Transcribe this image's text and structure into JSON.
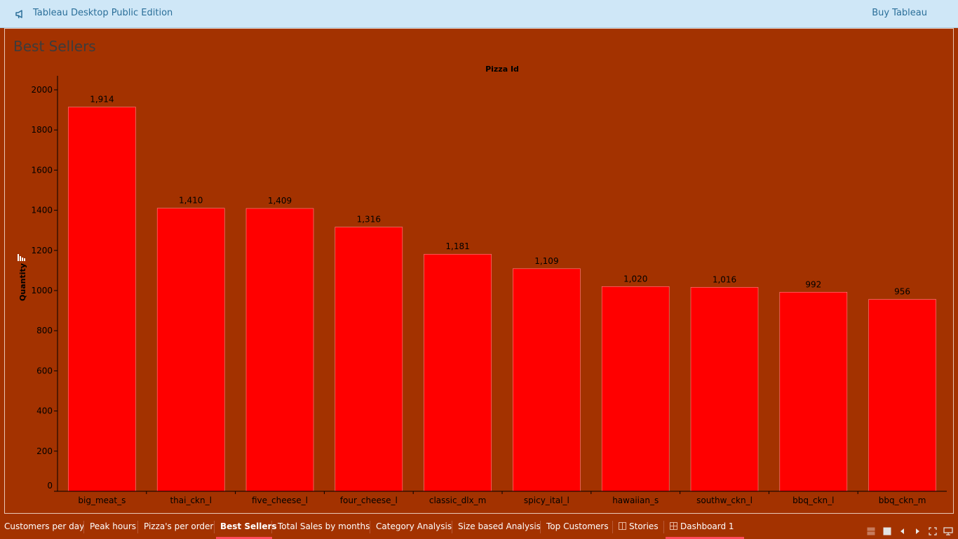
{
  "header": {
    "app_title": "Tableau Desktop Public Edition",
    "buy_label": "Buy Tableau",
    "icon": "megaphone-icon"
  },
  "sheet": {
    "title": "Best Sellers"
  },
  "chart_data": {
    "type": "bar",
    "title": "Pizza Id",
    "xlabel": "",
    "ylabel": "Quantity",
    "ylim": [
      0,
      2070
    ],
    "yticks": [
      0,
      200,
      400,
      600,
      800,
      1000,
      1200,
      1400,
      1600,
      1800,
      2000
    ],
    "categories": [
      "big_meat_s",
      "thai_ckn_l",
      "five_cheese_l",
      "four_cheese_l",
      "classic_dlx_m",
      "spicy_ital_l",
      "hawaiian_s",
      "southw_ckn_l",
      "bbq_ckn_l",
      "bbq_ckn_m"
    ],
    "values": [
      1914,
      1410,
      1409,
      1316,
      1181,
      1109,
      1020,
      1016,
      992,
      956
    ],
    "value_labels": [
      "1,914",
      "1,410",
      "1,409",
      "1,316",
      "1,181",
      "1,109",
      "1,020",
      "1,016",
      "992",
      "956"
    ],
    "bar_color": "#ff0000",
    "grid": false
  },
  "tabs": [
    {
      "label": "Customers per day",
      "icon": ""
    },
    {
      "label": "Peak hours",
      "icon": ""
    },
    {
      "label": "Pizza's per order",
      "icon": ""
    },
    {
      "label": "Best Sellers",
      "icon": "",
      "active": true
    },
    {
      "label": "Total Sales by months",
      "icon": ""
    },
    {
      "label": "Category Analysis",
      "icon": ""
    },
    {
      "label": "Size based Analysis",
      "icon": ""
    },
    {
      "label": "Top Customers",
      "icon": ""
    },
    {
      "label": "Stories",
      "icon": "story-icon"
    },
    {
      "label": "Dashboard 1",
      "icon": "dashboard-icon"
    }
  ],
  "footer_controls": [
    "filmstrip-icon",
    "sheet-sorter-icon",
    "prev-sheet-icon",
    "next-sheet-icon",
    "fullscreen-icon",
    "presentation-icon"
  ],
  "colors": {
    "background": "#a33200",
    "header_bg": "#cfe7f7",
    "header_text": "#2b6f99",
    "active_tab_underline": "#ff4a5a"
  }
}
